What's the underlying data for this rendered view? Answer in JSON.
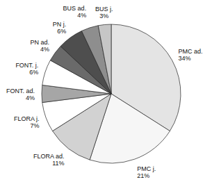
{
  "chart_data": {
    "type": "pie",
    "categories": [
      "PMC ad.",
      "PMC j.",
      "FLORA ad.",
      "FLORA j.",
      "FONT. ad.",
      "FONT. j.",
      "PN ad.",
      "PN j.",
      "BUS ad.",
      "BUS j."
    ],
    "values": [
      34,
      21,
      11,
      7,
      4,
      6,
      4,
      6,
      4,
      3
    ],
    "value_labels": [
      "34%",
      "21%",
      "11%",
      "7%",
      "4%",
      "6%",
      "4%",
      "6%",
      "4%",
      "3%"
    ],
    "colors": [
      "#e4e4e4",
      "#f6f6f6",
      "#d2d2d2",
      "#ffffff",
      "#a6a6a6",
      "#ffffff",
      "#6a6a6a",
      "#4e4e4e",
      "#8e8e8e",
      "#c6c6c6"
    ],
    "data_labels": true
  }
}
